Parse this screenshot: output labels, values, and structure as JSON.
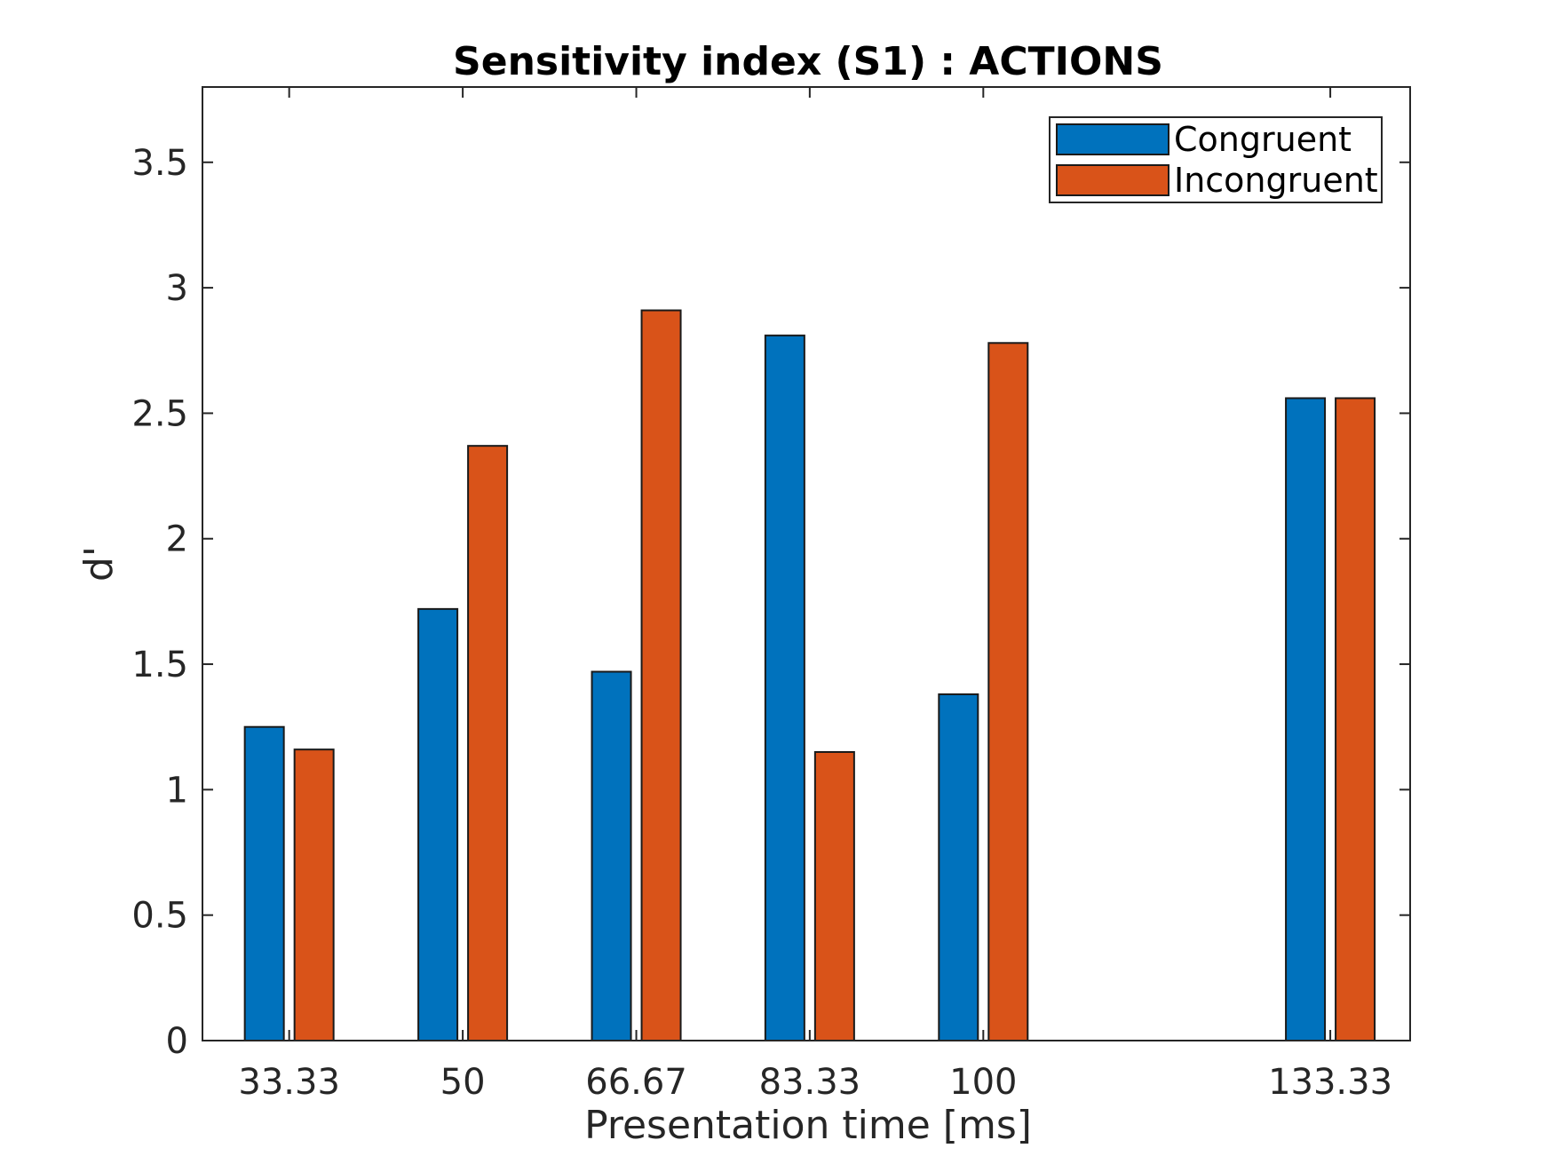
{
  "chart_data": {
    "type": "bar",
    "title": "Sensitivity index (S1) : ACTIONS",
    "xlabel": "Presentation time [ms]",
    "ylabel": "d'",
    "x": [
      33.33,
      50,
      66.67,
      83.33,
      100,
      133.33
    ],
    "x_tick_labels": [
      "33.33",
      "50",
      "66.67",
      "83.33",
      "100",
      "133.33"
    ],
    "xlim": [
      25,
      141
    ],
    "ylim": [
      0,
      3.8
    ],
    "y_ticks": [
      0,
      0.5,
      1,
      1.5,
      2,
      2.5,
      3,
      3.5
    ],
    "y_tick_labels": [
      "0",
      "0.5",
      "1",
      "1.5",
      "2",
      "2.5",
      "3",
      "3.5"
    ],
    "series": [
      {
        "name": "Congruent",
        "color": "#0072BD",
        "values": [
          1.25,
          1.72,
          1.47,
          2.81,
          1.38,
          2.56
        ]
      },
      {
        "name": "Incongruent",
        "color": "#D95319",
        "values": [
          1.16,
          2.37,
          2.91,
          1.15,
          2.78,
          2.56
        ]
      }
    ],
    "legend_position": "top-right",
    "grid": false
  }
}
